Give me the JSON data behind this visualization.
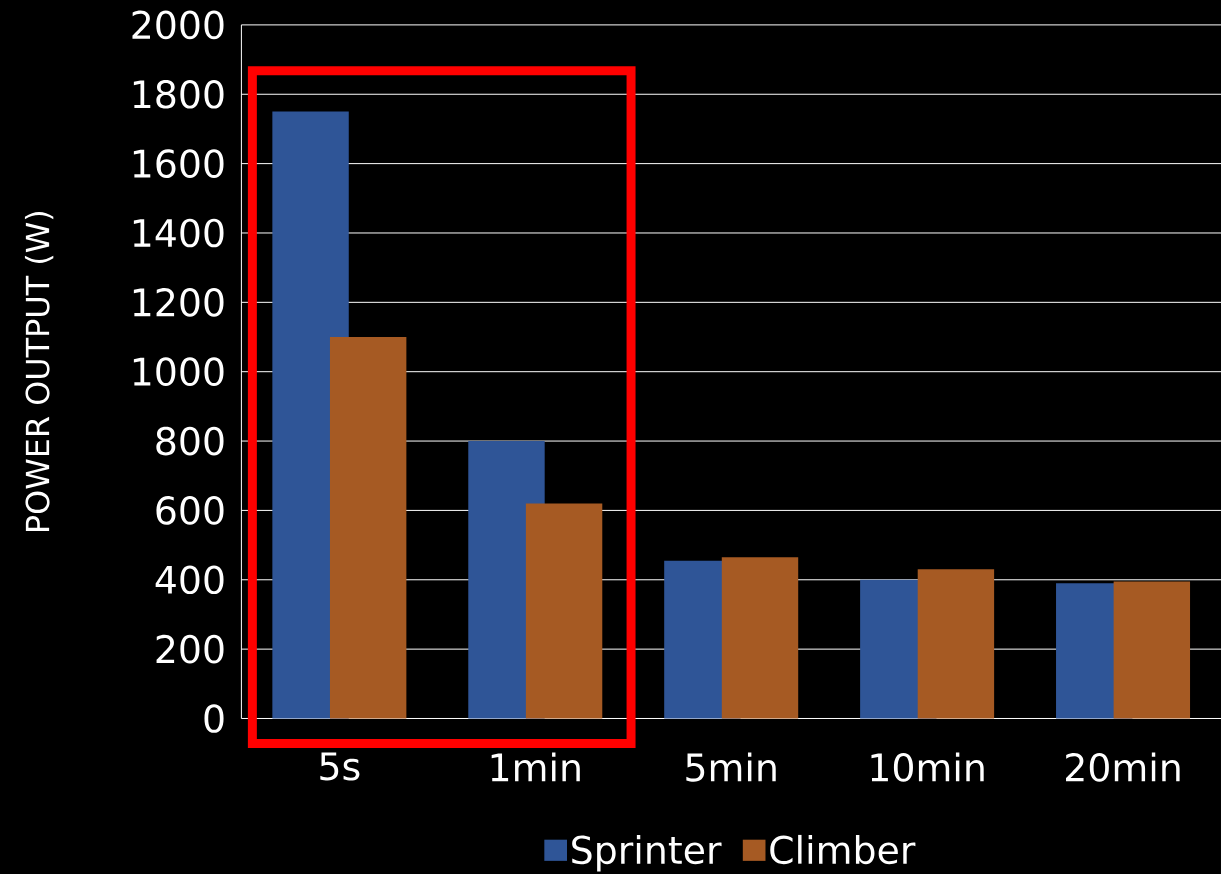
{
  "chart_data": {
    "type": "bar",
    "ylabel": "POWER OUTPUT (W)",
    "categories": [
      "5s",
      "1min",
      "5min",
      "10min",
      "20min"
    ],
    "series": [
      {
        "name": "Sprinter",
        "color": "#2f5597",
        "values": [
          1750,
          800,
          455,
          400,
          390
        ]
      },
      {
        "name": "Climber",
        "color": "#a65a23",
        "values": [
          1100,
          620,
          465,
          430,
          395
        ]
      }
    ],
    "ylim": [
      0,
      2000
    ],
    "yticks": [
      0,
      200,
      400,
      600,
      800,
      1000,
      1200,
      1400,
      1600,
      1800,
      2000
    ],
    "grid": "y",
    "legend": "bottom"
  }
}
